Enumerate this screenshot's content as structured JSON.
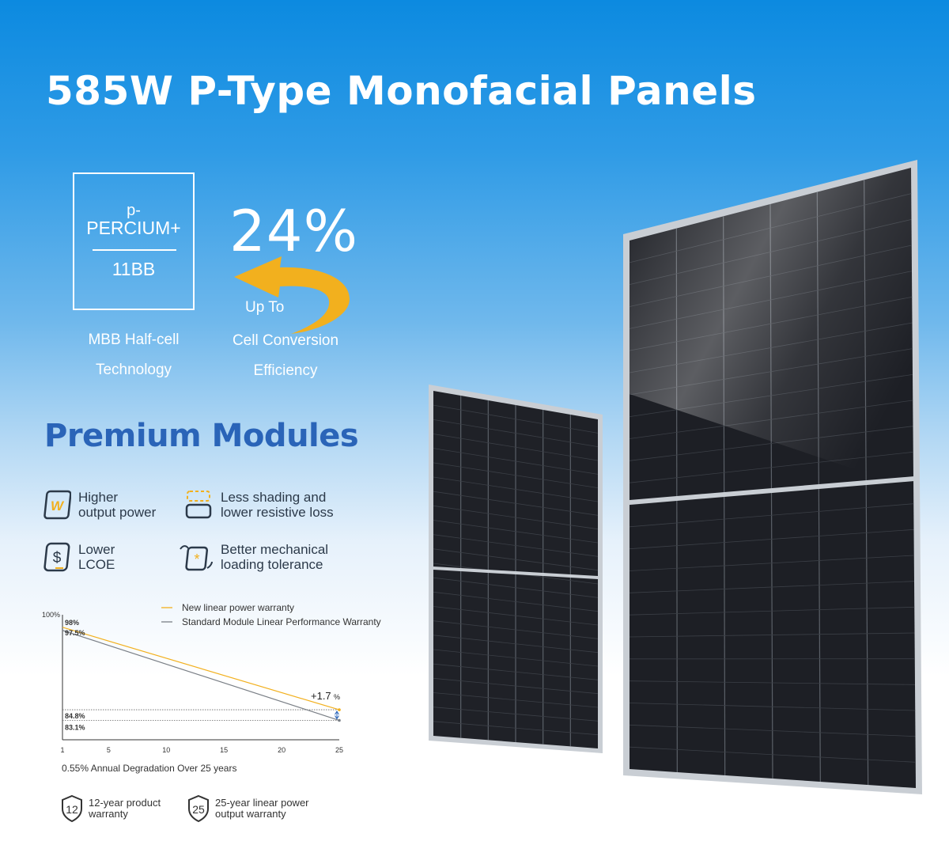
{
  "header": {
    "title": "585W P-Type Monofacial Panels"
  },
  "tech_badge": {
    "line1": "p-",
    "line2": "PERCIUM+",
    "line3": "11BB",
    "caption_line1": "MBB Half-cell",
    "caption_line2": "Technology"
  },
  "efficiency": {
    "value": "24%",
    "up_to": "Up To",
    "caption_line1": "Cell Conversion",
    "caption_line2": "Efficiency"
  },
  "premium": {
    "heading": "Premium Modules",
    "features": [
      {
        "icon": "watt-icon",
        "text": "Higher\noutput power"
      },
      {
        "icon": "cell-shading-icon",
        "text": "Less shading and\nlower resistive loss"
      },
      {
        "icon": "dollar-icon",
        "text": "Lower\nLCOE"
      },
      {
        "icon": "mechanical-load-icon",
        "text": "Better mechanical\nloading tolerance"
      }
    ]
  },
  "chart_data": {
    "type": "line",
    "x": [
      1,
      25
    ],
    "xticks": [
      1,
      5,
      10,
      15,
      20,
      25
    ],
    "ytick_label": "100%",
    "series": [
      {
        "name": "New linear power warranty",
        "color": "#f2b01e",
        "values": [
          98,
          84.8
        ]
      },
      {
        "name": "Standard Module Linear Performance Warranty",
        "color": "#7a7f86",
        "values": [
          97.5,
          83.1
        ]
      }
    ],
    "data_labels": [
      "98%",
      "97.5%",
      "84.8%",
      "83.1%"
    ],
    "annotation": "+1.7",
    "annotation_unit": "%",
    "ylim": [
      80,
      100
    ],
    "xlim": [
      1,
      25
    ],
    "caption": "0.55% Annual Degradation Over 25 years"
  },
  "warranties": [
    {
      "number": "12",
      "icon": "shield-12-icon",
      "text": "12-year product\nwarranty"
    },
    {
      "number": "25",
      "icon": "shield-25-icon",
      "text": "25-year linear power\noutput warranty"
    }
  ],
  "colors": {
    "accent": "#f2b01e",
    "heading_blue": "#2a64b8",
    "gray_line": "#7a7f86"
  }
}
